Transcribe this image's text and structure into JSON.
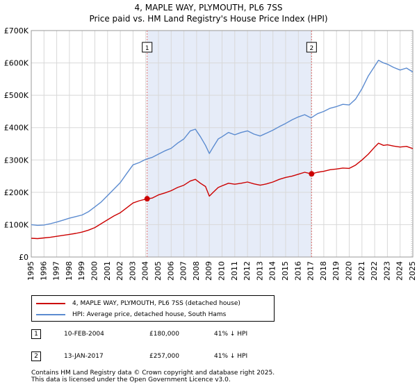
{
  "title_line1": "4, MAPLE WAY, PLYMOUTH, PL6 7SS",
  "title_line2": "Price paid vs. HM Land Registry's House Price Index (HPI)",
  "colors": {
    "property": "#cc0000",
    "hpi": "#5b8bd0",
    "shade": "#e6ecf8",
    "grid": "#d8d8d8",
    "marker_line": "#e07070"
  },
  "chart_data": {
    "type": "line",
    "title": "4, MAPLE WAY, PLYMOUTH, PL6 7SS — Price paid vs. HM Land Registry's House Price Index (HPI)",
    "xlabel": "",
    "ylabel": "",
    "xlim": [
      1995,
      2025
    ],
    "ylim": [
      0,
      700000
    ],
    "x_ticks": [
      1995,
      1996,
      1997,
      1998,
      1999,
      2000,
      2001,
      2002,
      2003,
      2004,
      2005,
      2006,
      2007,
      2008,
      2009,
      2010,
      2011,
      2012,
      2013,
      2014,
      2015,
      2016,
      2017,
      2018,
      2019,
      2020,
      2021,
      2022,
      2023,
      2024,
      2025
    ],
    "y_ticks": [
      {
        "value": 0,
        "label": "£0"
      },
      {
        "value": 100000,
        "label": "£100K"
      },
      {
        "value": 200000,
        "label": "£200K"
      },
      {
        "value": 300000,
        "label": "£300K"
      },
      {
        "value": 400000,
        "label": "£400K"
      },
      {
        "value": 500000,
        "label": "£500K"
      },
      {
        "value": 600000,
        "label": "£600K"
      },
      {
        "value": 700000,
        "label": "£700K"
      }
    ],
    "grid": true,
    "shaded_range": [
      2004.11,
      2017.04
    ],
    "series": [
      {
        "name": "4, MAPLE WAY, PLYMOUTH, PL6 7SS (detached house)",
        "color": "#cc0000",
        "x": [
          1995,
          1995.5,
          1996,
          1996.5,
          1997,
          1997.5,
          1998,
          1998.5,
          1999,
          1999.5,
          2000,
          2000.5,
          2001,
          2001.5,
          2002,
          2002.5,
          2003,
          2003.5,
          2004.11,
          2004.5,
          2005,
          2005.5,
          2006,
          2006.5,
          2007,
          2007.5,
          2007.9,
          2008.3,
          2008.7,
          2009.0,
          2009.3,
          2009.7,
          2010,
          2010.5,
          2011,
          2011.5,
          2012,
          2012.5,
          2013,
          2013.5,
          2014,
          2014.5,
          2015,
          2015.5,
          2016,
          2016.5,
          2017.04,
          2017.5,
          2018,
          2018.5,
          2019,
          2019.5,
          2020,
          2020.5,
          2021,
          2021.5,
          2022,
          2022.3,
          2022.7,
          2023,
          2023.5,
          2024,
          2024.5,
          2025
        ],
        "y": [
          58000,
          57000,
          59000,
          61000,
          64000,
          67000,
          70000,
          73000,
          77000,
          83000,
          91000,
          103000,
          115000,
          127000,
          137000,
          152000,
          167000,
          174000,
          180000,
          182000,
          192000,
          198000,
          205000,
          215000,
          222000,
          235000,
          240000,
          228000,
          218000,
          188000,
          200000,
          215000,
          220000,
          228000,
          225000,
          228000,
          232000,
          226000,
          222000,
          226000,
          232000,
          240000,
          246000,
          250000,
          256000,
          262000,
          257000,
          262000,
          265000,
          270000,
          272000,
          275000,
          274000,
          284000,
          300000,
          318000,
          340000,
          352000,
          345000,
          347000,
          343000,
          340000,
          342000,
          335000
        ]
      },
      {
        "name": "HPI: Average price, detached house, South Hams",
        "color": "#5b8bd0",
        "x": [
          1995,
          1995.5,
          1996,
          1996.5,
          1997,
          1997.5,
          1998,
          1998.5,
          1999,
          1999.5,
          2000,
          2000.5,
          2001,
          2001.5,
          2002,
          2002.5,
          2003,
          2003.5,
          2004,
          2004.5,
          2005,
          2005.5,
          2006,
          2006.5,
          2007,
          2007.5,
          2007.9,
          2008.3,
          2008.7,
          2009.0,
          2009.3,
          2009.7,
          2010,
          2010.5,
          2011,
          2011.5,
          2012,
          2012.5,
          2013,
          2013.5,
          2014,
          2014.5,
          2015,
          2015.5,
          2016,
          2016.5,
          2017,
          2017.5,
          2018,
          2018.5,
          2019,
          2019.5,
          2020,
          2020.5,
          2021,
          2021.5,
          2022,
          2022.3,
          2022.7,
          2023,
          2023.5,
          2024,
          2024.5,
          2025
        ],
        "y": [
          100000,
          98000,
          99000,
          103000,
          108000,
          114000,
          120000,
          125000,
          130000,
          140000,
          155000,
          170000,
          190000,
          210000,
          230000,
          258000,
          285000,
          292000,
          302000,
          308000,
          318000,
          328000,
          336000,
          352000,
          365000,
          390000,
          395000,
          372000,
          345000,
          320000,
          340000,
          365000,
          372000,
          385000,
          378000,
          385000,
          390000,
          380000,
          374000,
          383000,
          392000,
          403000,
          413000,
          424000,
          433000,
          440000,
          430000,
          443000,
          450000,
          460000,
          465000,
          472000,
          470000,
          488000,
          520000,
          560000,
          590000,
          608000,
          600000,
          596000,
          586000,
          578000,
          584000,
          572000
        ]
      }
    ],
    "annotations": [
      {
        "label": "1",
        "x": 2004.11,
        "y": 180000
      },
      {
        "label": "2",
        "x": 2017.04,
        "y": 257000
      }
    ]
  },
  "legend": {
    "property_label": "4, MAPLE WAY, PLYMOUTH, PL6 7SS (detached house)",
    "hpi_label": "HPI: Average price, detached house, South Hams"
  },
  "sales": [
    {
      "badge": "1",
      "date": "10-FEB-2004",
      "price": "£180,000",
      "hpi": "41% ↓ HPI"
    },
    {
      "badge": "2",
      "date": "13-JAN-2017",
      "price": "£257,000",
      "hpi": "41% ↓ HPI"
    }
  ],
  "footer": {
    "line1": "Contains HM Land Registry data © Crown copyright and database right 2025.",
    "line2": "This data is licensed under the Open Government Licence v3.0."
  }
}
